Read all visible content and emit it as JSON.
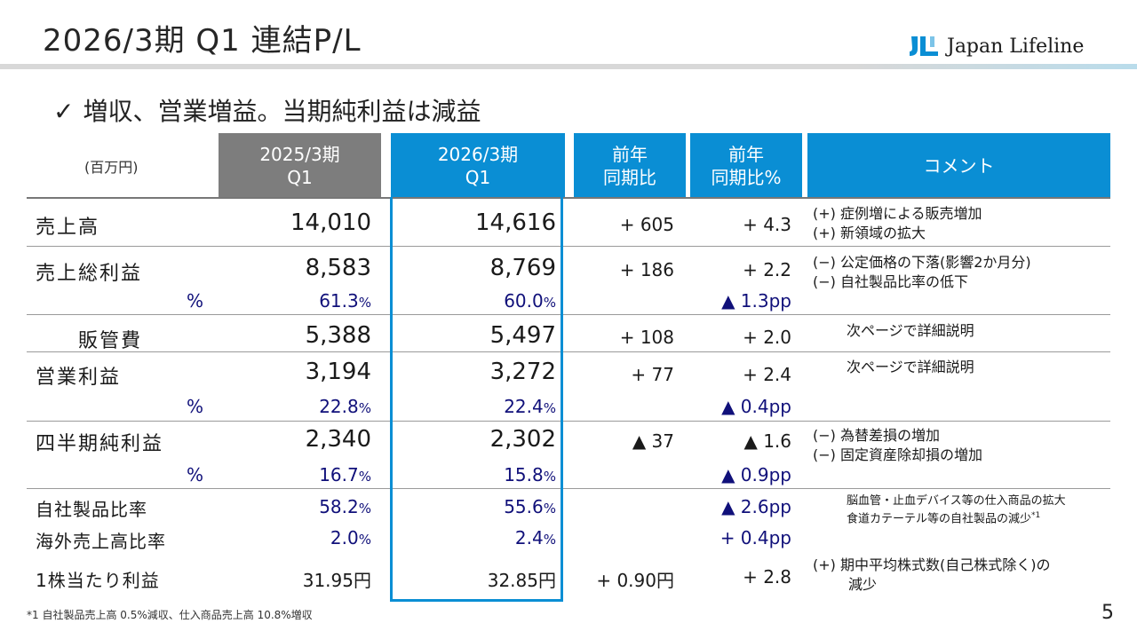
{
  "title": "2026/3期 Q1 連結P/L",
  "logo": {
    "text": "Japan Lifeline",
    "brand_color": "#0a8ed4"
  },
  "headline": {
    "check": "✓",
    "text": "増収、営業増益。当期純利益は減益"
  },
  "table": {
    "unit": "(百万円)",
    "columns": {
      "prev": [
        "2025/3期",
        "Q1"
      ],
      "curr": [
        "2026/3期",
        "Q1"
      ],
      "diff": [
        "前年",
        "同期比"
      ],
      "diff_pct": [
        "前年",
        "同期比%"
      ],
      "comment": "コメント"
    },
    "rows": {
      "sales": {
        "label": "売上高",
        "prev": "14,010",
        "curr": "14,616",
        "diff": "+ 605",
        "pct": "+ 4.3",
        "comment": [
          "(+) 症例増による販売増加",
          "(+) 新領域の拡大"
        ]
      },
      "gross": {
        "label": "売上総利益",
        "prev": "8,583",
        "curr": "8,769",
        "diff": "+ 186",
        "pct": "+ 2.2",
        "comment": [
          "(−) 公定価格の下落(影響2か月分)",
          "(−) 自社製品比率の低下"
        ]
      },
      "gross_pct": {
        "label": "%",
        "prev": "61.3",
        "curr": "60.0",
        "unit": "%",
        "pct": "▲ 1.3pp"
      },
      "sga": {
        "label": "販管費",
        "prev": "5,388",
        "curr": "5,497",
        "diff": "+ 108",
        "pct": "+ 2.0",
        "comment": "次ページで詳細説明"
      },
      "op": {
        "label": "営業利益",
        "prev": "3,194",
        "curr": "3,272",
        "diff": "+ 77",
        "pct": "+ 2.4",
        "comment": "次ページで詳細説明"
      },
      "op_pct": {
        "label": "%",
        "prev": "22.8",
        "curr": "22.4",
        "unit": "%",
        "pct": "▲ 0.4pp"
      },
      "net": {
        "label": "四半期純利益",
        "prev": "2,340",
        "curr": "2,302",
        "diff": "▲ 37",
        "pct": "▲ 1.6",
        "comment": [
          "(−) 為替差損の増加",
          "(−) 固定資産除却損の増加"
        ]
      },
      "net_pct": {
        "label": "%",
        "prev": "16.7",
        "curr": "15.8",
        "unit": "%",
        "pct": "▲ 0.9pp"
      },
      "own": {
        "label": "自社製品比率",
        "prev": "58.2",
        "curr": "55.6",
        "unit": "%",
        "pct": "▲ 2.6pp",
        "comment": [
          "脳血管・止血デバイス等の仕入商品の拡大",
          "食道カテーテル等の自社製品の減少"
        ],
        "comment_note": "*1"
      },
      "overseas": {
        "label": "海外売上高比率",
        "prev": "2.0",
        "curr": "2.4",
        "unit": "%",
        "pct": "+ 0.4pp"
      },
      "eps": {
        "label": "1株当たり利益",
        "prev": "31.95円",
        "curr": "32.85円",
        "diff": "+ 0.90円",
        "pct": "+ 2.8",
        "comment": [
          "(+) 期中平均株式数(自己株式除く)の",
          "減少"
        ]
      }
    }
  },
  "footnote": "*1 自社製品売上高 0.5%減収、仕入商品売上高 10.8%増収",
  "page_number": "5"
}
